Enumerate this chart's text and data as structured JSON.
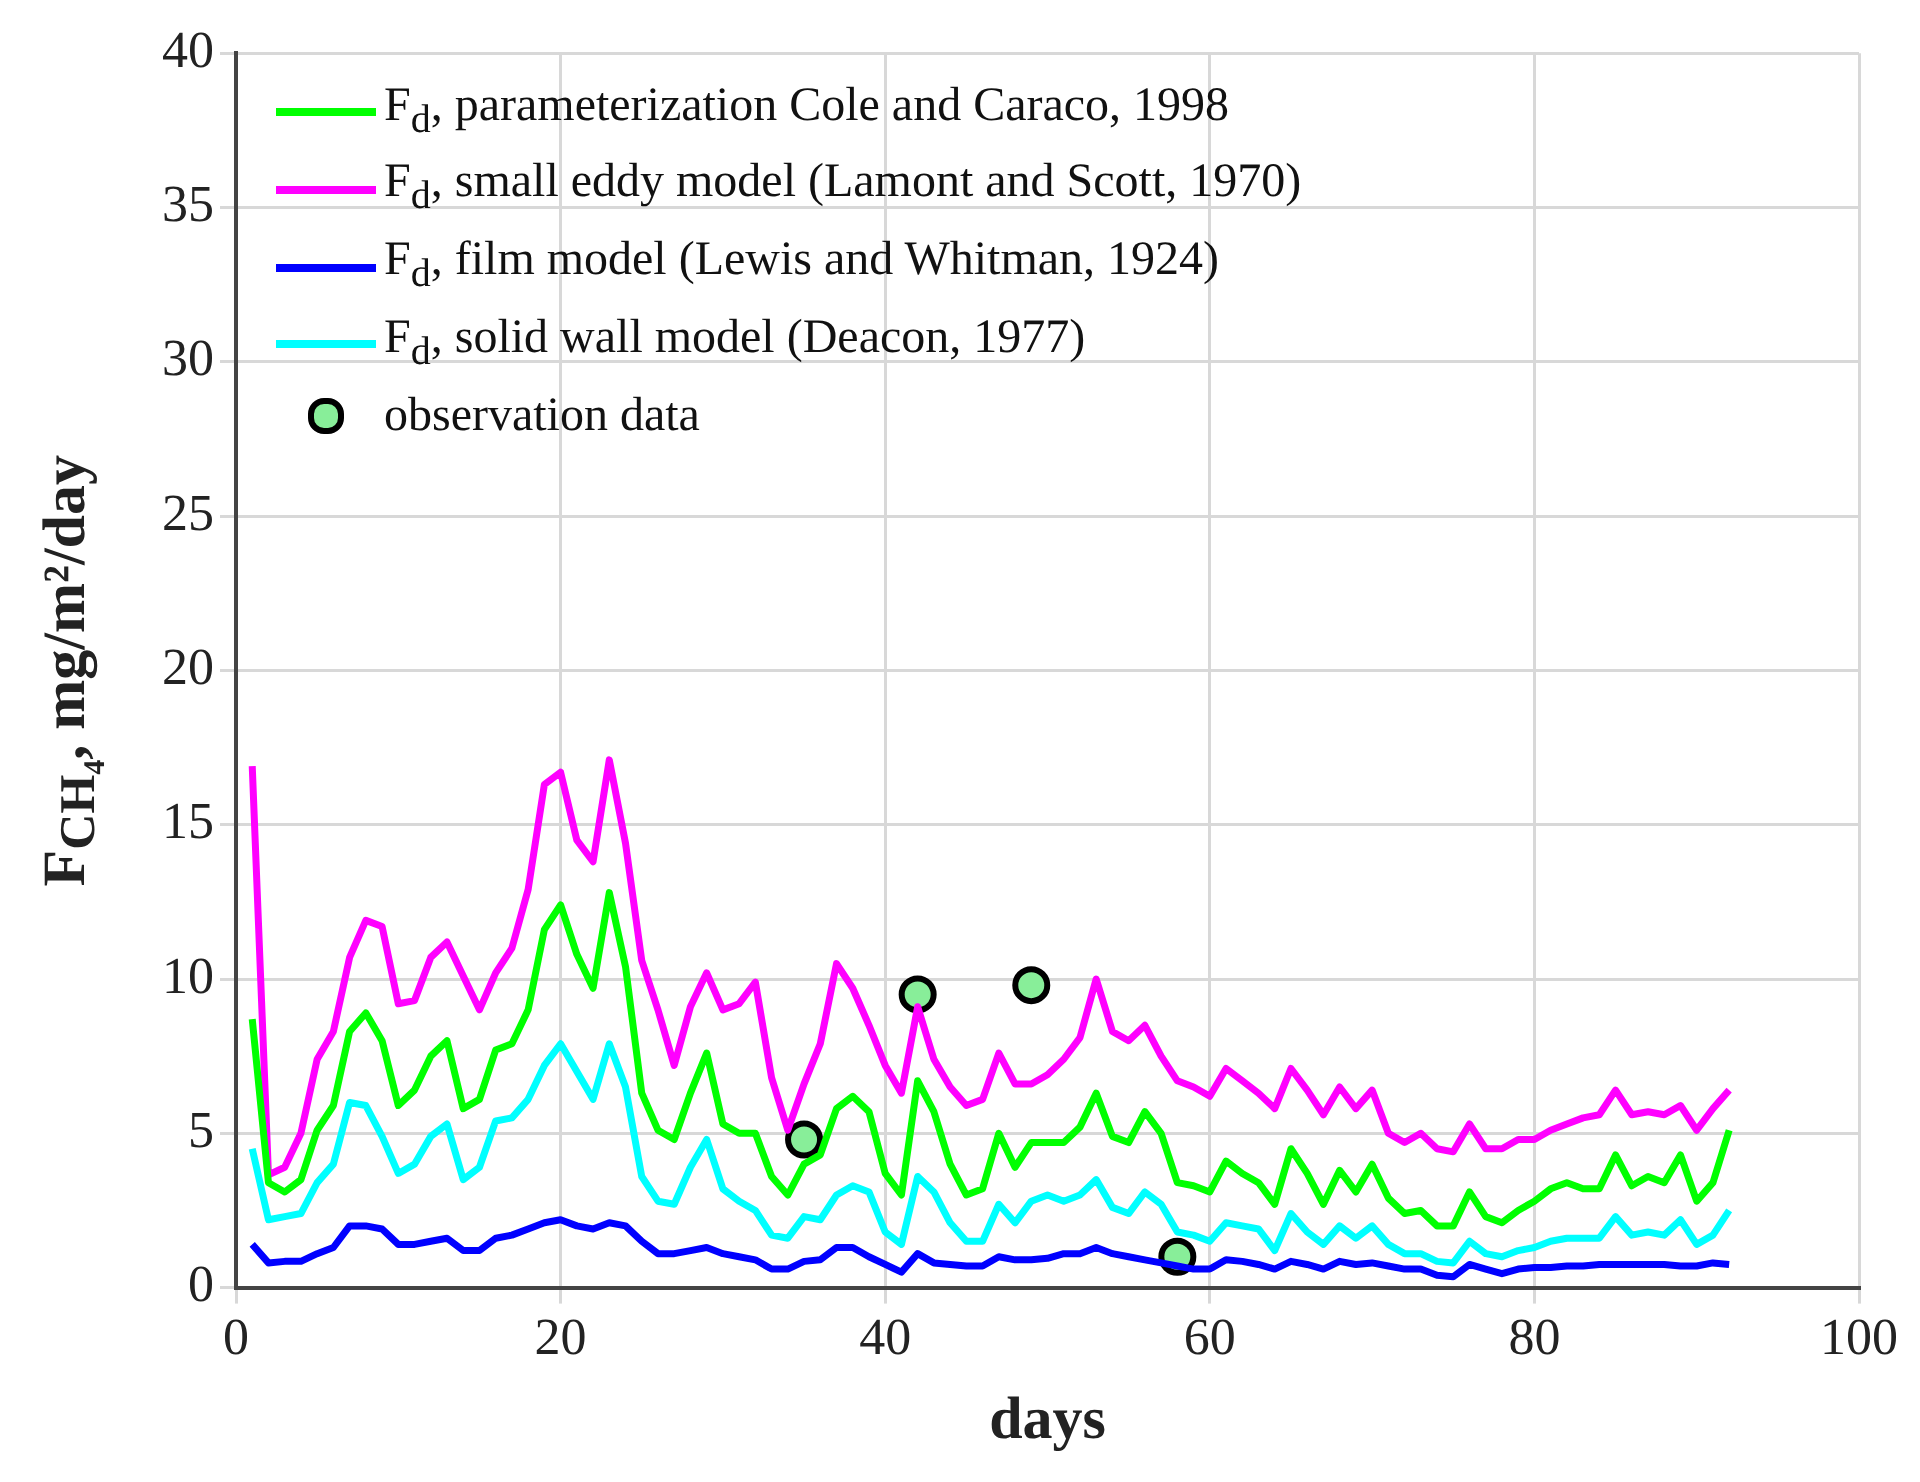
{
  "chart_data": {
    "type": "line",
    "xlabel": "days",
    "ylabel": "F$_{CH₄}$, mg/m²/day",
    "x": [
      1,
      2,
      3,
      4,
      5,
      6,
      7,
      8,
      9,
      10,
      11,
      12,
      13,
      14,
      15,
      16,
      17,
      18,
      19,
      20,
      21,
      22,
      23,
      24,
      25,
      26,
      27,
      28,
      29,
      30,
      31,
      32,
      33,
      34,
      35,
      36,
      37,
      38,
      39,
      40,
      41,
      42,
      43,
      44,
      45,
      46,
      47,
      48,
      49,
      50,
      51,
      52,
      53,
      54,
      55,
      56,
      57,
      58,
      59,
      60,
      61,
      62,
      63,
      64,
      65,
      66,
      67,
      68,
      69,
      70,
      71,
      72,
      73,
      74,
      75,
      76,
      77,
      78,
      79,
      80,
      81,
      82,
      83,
      84,
      85,
      86,
      87,
      88,
      89,
      90,
      91,
      92
    ],
    "xlim": [
      0,
      100
    ],
    "xticks": [
      0,
      20,
      40,
      60,
      80,
      100
    ],
    "ylim": [
      0,
      40
    ],
    "yticks": [
      0,
      5,
      10,
      15,
      20,
      25,
      30,
      35,
      40
    ],
    "grid": true,
    "legend": "top left",
    "line_style": "solid",
    "series": [
      {
        "name": "F$_{d}$, parameterization  Cole and Caraco, 1998",
        "color": "#00ff00",
        "values": [
          8.7,
          3.4,
          3.1,
          3.5,
          5.1,
          5.9,
          8.3,
          8.9,
          8.0,
          5.9,
          6.4,
          7.5,
          8.0,
          5.8,
          6.1,
          7.7,
          7.9,
          9.0,
          11.6,
          12.4,
          10.8,
          9.7,
          12.8,
          10.4,
          6.3,
          5.1,
          4.8,
          6.3,
          7.6,
          5.3,
          5.0,
          5.0,
          3.6,
          3.0,
          4.0,
          4.3,
          5.8,
          6.2,
          5.7,
          3.7,
          3.0,
          6.7,
          5.7,
          4.0,
          3.0,
          3.2,
          5.0,
          3.9,
          4.7,
          4.7,
          4.7,
          5.2,
          6.3,
          4.9,
          4.7,
          5.7,
          5.0,
          3.4,
          3.3,
          3.1,
          4.1,
          3.7,
          3.4,
          2.7,
          4.5,
          3.7,
          2.7,
          3.8,
          3.1,
          4.0,
          2.9,
          2.4,
          2.5,
          2.0,
          2.0,
          3.1,
          2.3,
          2.1,
          2.5,
          2.8,
          3.2,
          3.4,
          3.2,
          3.2,
          4.3,
          3.3,
          3.6,
          3.4,
          4.3,
          2.8,
          3.4,
          5.1
        ]
      },
      {
        "name": "F$_{d}$, small eddy model (Lamont and Scott, 1970)",
        "color": "#ff00ff",
        "values": [
          16.9,
          3.65,
          3.9,
          5.0,
          7.4,
          8.3,
          10.7,
          11.9,
          11.7,
          9.2,
          9.3,
          10.7,
          11.2,
          10.1,
          9.0,
          10.2,
          11.0,
          12.9,
          16.3,
          16.7,
          14.5,
          13.8,
          17.1,
          14.4,
          10.6,
          9.0,
          7.2,
          9.1,
          10.2,
          9.0,
          9.2,
          9.9,
          6.8,
          5.1,
          6.6,
          7.9,
          10.5,
          9.7,
          8.5,
          7.2,
          6.3,
          9.1,
          7.4,
          6.5,
          5.9,
          6.1,
          7.6,
          6.6,
          6.6,
          6.9,
          7.4,
          8.1,
          10.0,
          8.3,
          8.0,
          8.5,
          7.5,
          6.7,
          6.5,
          6.2,
          7.1,
          6.7,
          6.3,
          5.8,
          7.1,
          6.4,
          5.6,
          6.5,
          5.8,
          6.4,
          5.0,
          4.7,
          5.0,
          4.5,
          4.4,
          5.3,
          4.5,
          4.5,
          4.8,
          4.8,
          5.1,
          5.3,
          5.5,
          5.6,
          6.4,
          5.6,
          5.7,
          5.6,
          5.9,
          5.1,
          5.8,
          6.4
        ]
      },
      {
        "name": "F$_{d}$, film model (Lewis and Whitman, 1924)",
        "color": "#0000ff",
        "values": [
          1.4,
          0.8,
          0.85,
          0.85,
          1.1,
          1.3,
          2.0,
          2.0,
          1.9,
          1.4,
          1.4,
          1.5,
          1.6,
          1.2,
          1.2,
          1.6,
          1.7,
          1.9,
          2.1,
          2.2,
          2.0,
          1.9,
          2.1,
          2.0,
          1.5,
          1.1,
          1.1,
          1.2,
          1.3,
          1.1,
          1.0,
          0.9,
          0.6,
          0.6,
          0.85,
          0.9,
          1.3,
          1.3,
          1.0,
          0.75,
          0.5,
          1.1,
          0.8,
          0.75,
          0.7,
          0.7,
          1.0,
          0.9,
          0.9,
          0.95,
          1.1,
          1.1,
          1.3,
          1.1,
          1.0,
          0.9,
          0.8,
          0.7,
          0.6,
          0.6,
          0.9,
          0.85,
          0.75,
          0.6,
          0.85,
          0.75,
          0.6,
          0.85,
          0.75,
          0.8,
          0.7,
          0.6,
          0.6,
          0.4,
          0.35,
          0.75,
          0.6,
          0.45,
          0.6,
          0.65,
          0.65,
          0.7,
          0.7,
          0.75,
          0.75,
          0.75,
          0.75,
          0.75,
          0.7,
          0.7,
          0.8,
          0.75
        ]
      },
      {
        "name": "F$_{d}$, solid wall model (Deacon, 1977)",
        "color": "#00ffff",
        "values": [
          4.5,
          2.2,
          2.3,
          2.4,
          3.4,
          4.0,
          6.0,
          5.9,
          4.9,
          3.7,
          4.0,
          4.9,
          5.3,
          3.5,
          3.9,
          5.4,
          5.5,
          6.1,
          7.2,
          7.9,
          7.0,
          6.1,
          7.9,
          6.5,
          3.6,
          2.8,
          2.7,
          3.9,
          4.8,
          3.2,
          2.8,
          2.5,
          1.7,
          1.6,
          2.3,
          2.2,
          3.0,
          3.3,
          3.1,
          1.8,
          1.4,
          3.6,
          3.1,
          2.1,
          1.5,
          1.5,
          2.7,
          2.1,
          2.8,
          3.0,
          2.8,
          3.0,
          3.5,
          2.6,
          2.4,
          3.1,
          2.7,
          1.8,
          1.7,
          1.5,
          2.1,
          2.0,
          1.9,
          1.2,
          2.4,
          1.8,
          1.4,
          2.0,
          1.6,
          2.0,
          1.4,
          1.1,
          1.1,
          0.85,
          0.8,
          1.5,
          1.1,
          1.0,
          1.2,
          1.3,
          1.5,
          1.6,
          1.6,
          1.6,
          2.3,
          1.7,
          1.8,
          1.7,
          2.2,
          1.4,
          1.7,
          2.5
        ]
      },
      {
        "name": "observation data",
        "type": "scatter",
        "marker": "circle",
        "color": "#88ee99",
        "x": [
          35,
          42,
          49,
          58
        ],
        "values": [
          4.8,
          9.5,
          9.8,
          1.0
        ]
      }
    ]
  }
}
